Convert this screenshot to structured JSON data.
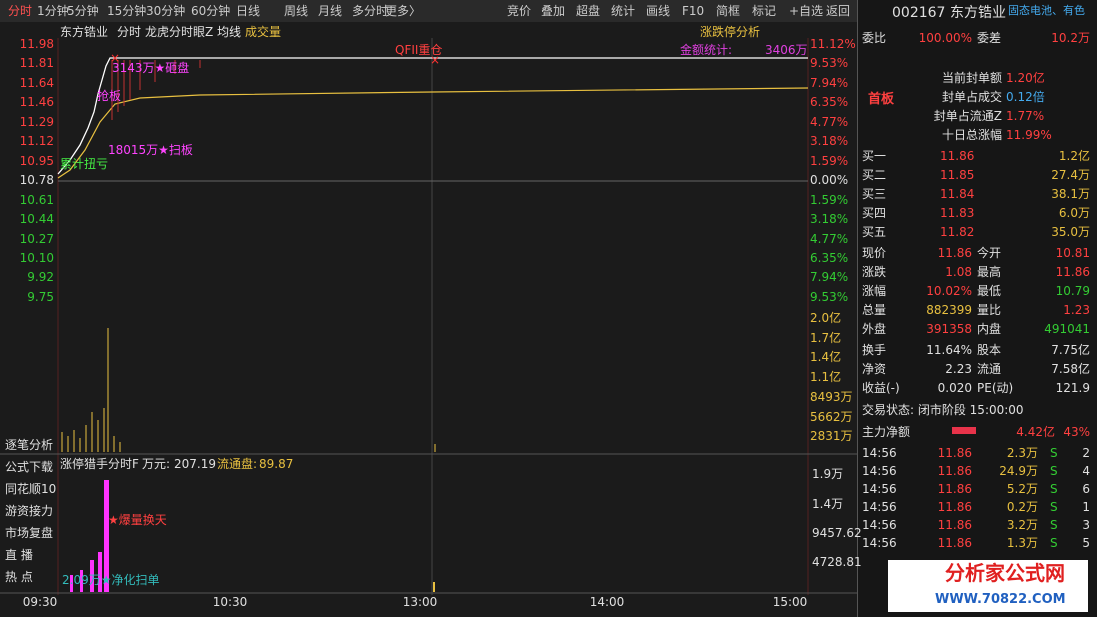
{
  "toolbar": {
    "left": [
      "分时",
      "1分钟",
      "5分钟",
      "15分钟",
      "30分钟",
      "60分钟",
      "日线",
      "周线",
      "月线",
      "多分时",
      "更多〉"
    ],
    "right": [
      "竞价",
      "叠加",
      "超盘",
      "统计",
      "画线",
      "F10",
      "简框",
      "标记",
      "+自选",
      "返回"
    ]
  },
  "chart": {
    "header": [
      "东方锆业",
      "分时",
      "龙虎分时眼Z",
      "均线",
      "成交量"
    ],
    "analysis": "涨跌停分析",
    "price_axis": [
      "11.98",
      "11.81",
      "11.64",
      "11.46",
      "11.29",
      "11.12",
      "10.95",
      "10.78",
      "10.61",
      "10.44",
      "10.27",
      "10.10",
      "9.92",
      "9.75"
    ],
    "pct_axis": [
      "11.12%",
      "9.53%",
      "7.94%",
      "6.35%",
      "4.77%",
      "3.18%",
      "1.59%",
      "0.00%",
      "1.59%",
      "3.18%",
      "4.77%",
      "6.35%",
      "7.94%",
      "9.53%"
    ],
    "vol_axis": [
      "2.0亿",
      "1.7亿",
      "1.4亿",
      "1.1亿",
      "8493万",
      "5662万",
      "2831万"
    ],
    "annotations": {
      "qfii": "QFII重仓",
      "amount_label": "金额统计:",
      "amount_value": "3406万",
      "dump": "3143万★砸盘",
      "grab": "抢板",
      "sweep": "18015万★扫板",
      "cumulative": "累计扭亏"
    },
    "side_menu": [
      "逐笔分析",
      "公式下载",
      "同花顺10",
      "游资接力",
      "市场复盘",
      "直 播",
      "热 点"
    ],
    "sub": {
      "title": "涨停猎手分时F",
      "amount_label": "万元:",
      "amount": "207.19",
      "float_label": "流通盘:",
      "float": "89.87",
      "axis": [
        "1.9万",
        "1.4万",
        "9457.62",
        "4728.81"
      ],
      "burst": "★爆量换天",
      "net": "2.09万★净化扫单"
    },
    "time_axis": [
      "09:30",
      "10:30",
      "13:00",
      "14:00",
      "15:00"
    ]
  },
  "panel": {
    "code": "002167",
    "name": "东方锆业",
    "concept": "固态电池、有色",
    "ratio": {
      "label": "委比",
      "value": "100.00%",
      "diff_label": "委差",
      "diff": "10.2万"
    },
    "board": "首板",
    "seal": [
      [
        "当前封单额",
        "1.20亿"
      ],
      [
        "封单占成交",
        "0.12倍"
      ],
      [
        "封单占流通Z",
        "1.77%"
      ],
      [
        "十日总涨幅",
        "11.99%"
      ]
    ],
    "bids": [
      [
        "买一",
        "11.86",
        "1.2亿"
      ],
      [
        "买二",
        "11.85",
        "27.4万"
      ],
      [
        "买三",
        "11.84",
        "38.1万"
      ],
      [
        "买四",
        "11.83",
        "6.0万"
      ],
      [
        "买五",
        "11.82",
        "35.0万"
      ]
    ],
    "quote": [
      [
        "现价",
        "11.86",
        "今开",
        "10.81"
      ],
      [
        "涨跌",
        "1.08",
        "最高",
        "11.86"
      ],
      [
        "涨幅",
        "10.02%",
        "最低",
        "10.79"
      ],
      [
        "总量",
        "882399",
        "量比",
        "1.23"
      ],
      [
        "外盘",
        "391358",
        "内盘",
        "491041"
      ]
    ],
    "fund": [
      [
        "换手",
        "11.64%",
        "股本",
        "7.75亿"
      ],
      [
        "净资",
        "2.23",
        "流通",
        "7.58亿"
      ],
      [
        "收益(-)",
        "0.020",
        "PE(动)",
        "121.9"
      ]
    ],
    "status": "交易状态: 闭市阶段 15:00:00",
    "main": {
      "label": "主力净额",
      "value": "4.42亿",
      "pct": "43%"
    },
    "trades": [
      [
        "14:56",
        "11.86",
        "2.3万",
        "S",
        "2"
      ],
      [
        "14:56",
        "11.86",
        "24.9万",
        "S",
        "4"
      ],
      [
        "14:56",
        "11.86",
        "5.2万",
        "S",
        "6"
      ],
      [
        "14:56",
        "11.86",
        "0.2万",
        "S",
        "1"
      ],
      [
        "14:56",
        "11.86",
        "3.2万",
        "S",
        "3"
      ],
      [
        "14:56",
        "11.86",
        "1.3万",
        "S",
        "5"
      ]
    ],
    "watermark": {
      "title": "分析家公式网",
      "url": "WWW.70822.COM"
    }
  }
}
